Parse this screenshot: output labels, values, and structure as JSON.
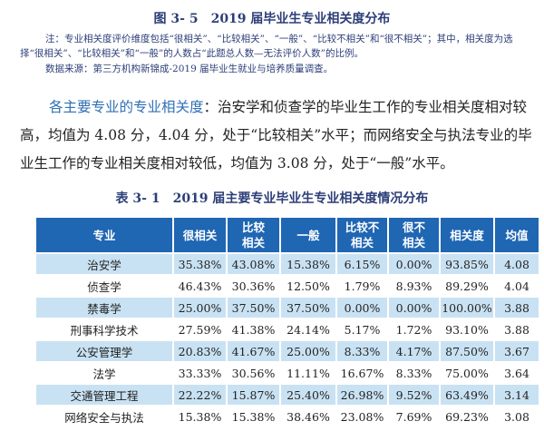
{
  "figure_title": "图 3- 5　2019 届毕业生专业相关度分布",
  "note_line1": "注：专业相关度评价维度包括“很相关”、“比较相关”、“一般”、“比较不相关”和“很不相关”；其中，相关度为选择“很相关”、“比较相关”和“一般”的人数占“此题总人数—无法评价人数”的比例。",
  "note_line2": "数据来源：第三方机构新锦成-2019 届毕业生就业与培养质量调查。",
  "paragraph_lead": "各主要专业的专业相关度",
  "paragraph_body": "：治安学和侦查学的毕业生工作的专业相关度相对较高，均值为 4.08 分，4.04 分，处于“比较相关”水平；而网络安全与执法专业的毕业生工作的专业相关度相对较低，均值为 3.08 分，处于“一般”水平。",
  "table_title": "表 3- 1　2019 届主要专业毕业生专业相关度情况分布",
  "table": {
    "headers": [
      "专业",
      "很相关",
      "比较相关",
      "一般",
      "比较不相关",
      "很不相关",
      "相关度",
      "均值"
    ],
    "rows": [
      [
        "治安学",
        "35.38%",
        "43.08%",
        "15.38%",
        "6.15%",
        "0.00%",
        "93.85%",
        "4.08"
      ],
      [
        "侦查学",
        "46.43%",
        "30.36%",
        "12.50%",
        "1.79%",
        "8.93%",
        "89.29%",
        "4.04"
      ],
      [
        "禁毒学",
        "25.00%",
        "37.50%",
        "37.50%",
        "0.00%",
        "0.00%",
        "100.00%",
        "3.88"
      ],
      [
        "刑事科学技术",
        "27.59%",
        "41.38%",
        "24.14%",
        "5.17%",
        "1.72%",
        "93.10%",
        "3.88"
      ],
      [
        "公安管理学",
        "20.83%",
        "41.67%",
        "25.00%",
        "8.33%",
        "4.17%",
        "87.50%",
        "3.67"
      ],
      [
        "法学",
        "33.33%",
        "30.56%",
        "11.11%",
        "16.67%",
        "8.33%",
        "75.00%",
        "3.64"
      ],
      [
        "交通管理工程",
        "22.22%",
        "15.87%",
        "25.40%",
        "26.98%",
        "9.52%",
        "63.49%",
        "3.14"
      ],
      [
        "网络安全与执法",
        "15.38%",
        "15.38%",
        "38.46%",
        "23.08%",
        "7.69%",
        "69.23%",
        "3.08"
      ]
    ]
  },
  "colors": {
    "header_bg": "#1f66b3",
    "stripe_bg": "#c9e2f3",
    "title_text": "#2c3e78",
    "lead_text": "#2f6fb5"
  }
}
